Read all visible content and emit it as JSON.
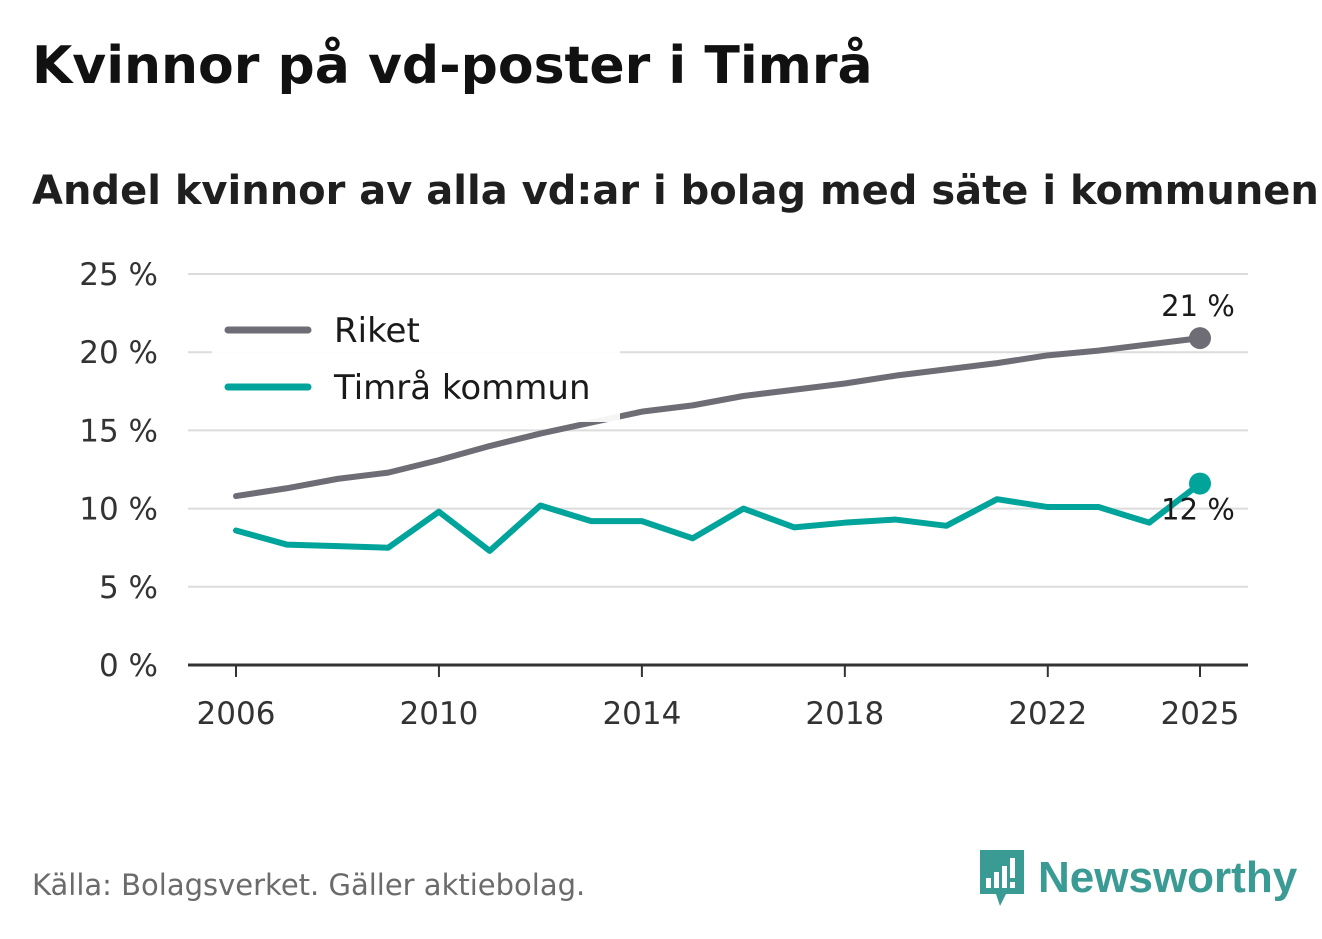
{
  "title": "Kvinnor på vd-poster i Timrå",
  "subtitle": "Andel kvinnor av alla vd:ar i bolag med säte i kommunen",
  "source": "Källa: Bolagsverket. Gäller aktiebolag.",
  "brand": "Newsworthy",
  "colors": {
    "riket": "#6e6d75",
    "timra": "#00a49a",
    "grid": "#dcdcdc",
    "axis": "#333333",
    "brand": "#3a9a94"
  },
  "chart_data": {
    "type": "line",
    "title": "Kvinnor på vd-poster i Timrå",
    "xlabel": "",
    "ylabel": "",
    "ylim": [
      0,
      25
    ],
    "yticks": [
      0,
      5,
      10,
      15,
      20,
      25
    ],
    "ytick_labels": [
      "0 %",
      "5 %",
      "10 %",
      "15 %",
      "20 %",
      "25 %"
    ],
    "xlim": [
      2006,
      2025
    ],
    "xticks": [
      2006,
      2010,
      2014,
      2018,
      2022,
      2025
    ],
    "xtick_labels": [
      "2006",
      "2010",
      "2014",
      "2018",
      "2022",
      "2025"
    ],
    "grid": true,
    "legend": "top-left",
    "x": [
      2006,
      2007,
      2008,
      2009,
      2010,
      2011,
      2012,
      2013,
      2014,
      2015,
      2016,
      2017,
      2018,
      2019,
      2020,
      2021,
      2022,
      2023,
      2024,
      2025
    ],
    "series": [
      {
        "name": "Riket",
        "color": "#6e6d75",
        "values": [
          10.8,
          11.3,
          11.9,
          12.3,
          13.1,
          14.0,
          14.8,
          15.5,
          16.2,
          16.6,
          17.2,
          17.6,
          18.0,
          18.5,
          18.9,
          19.3,
          19.8,
          20.1,
          20.5,
          20.9
        ],
        "end_label": "21 %"
      },
      {
        "name": "Timrå kommun",
        "color": "#00a49a",
        "values": [
          8.6,
          7.7,
          7.6,
          7.5,
          9.8,
          7.3,
          10.2,
          9.2,
          9.2,
          8.1,
          10.0,
          8.8,
          9.1,
          9.3,
          8.9,
          10.6,
          10.1,
          10.1,
          9.1,
          11.6
        ],
        "end_label": "12 %"
      }
    ]
  }
}
